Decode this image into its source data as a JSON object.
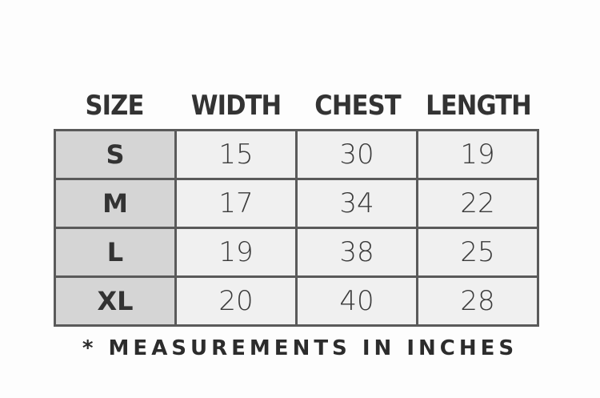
{
  "table": {
    "header": [
      "SIZE",
      "WIDTH",
      "CHEST",
      "LENGTH"
    ],
    "rows": [
      [
        "S",
        15,
        30,
        19
      ],
      [
        "M",
        17,
        34,
        22
      ],
      [
        "L",
        19,
        38,
        25
      ],
      [
        "XL",
        20,
        40,
        28
      ]
    ]
  },
  "footnote": "* MEASUREMENTS IN INCHES"
}
